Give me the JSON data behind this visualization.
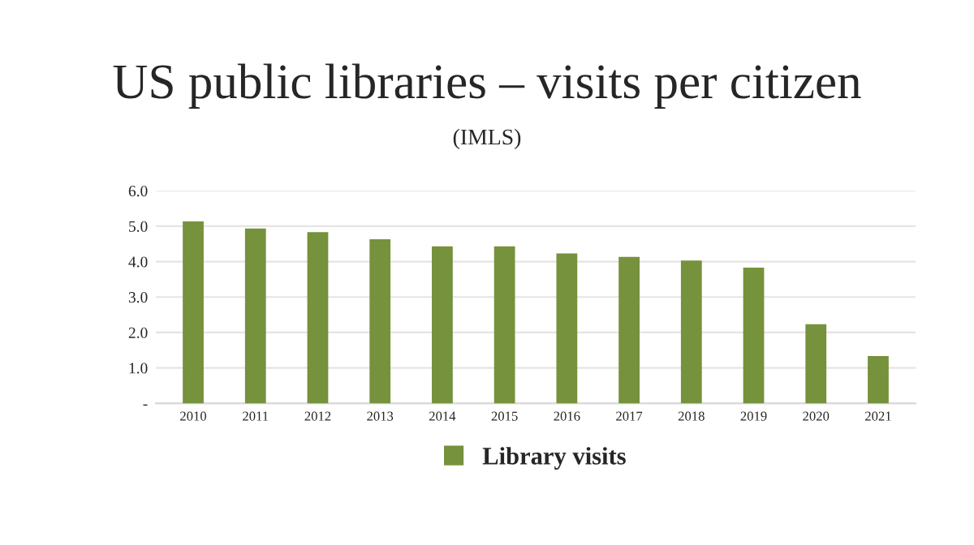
{
  "chart_data": {
    "type": "bar",
    "title": "US public libraries – visits per citizen",
    "subtitle": "(IMLS)",
    "categories": [
      "2010",
      "2011",
      "2012",
      "2013",
      "2014",
      "2015",
      "2016",
      "2017",
      "2018",
      "2019",
      "2020",
      "2021"
    ],
    "series": [
      {
        "name": "Library visits",
        "color": "#76923c",
        "values": [
          5.1,
          4.9,
          4.8,
          4.6,
          4.4,
          4.4,
          4.2,
          4.1,
          4.0,
          3.8,
          2.2,
          1.3
        ]
      }
    ],
    "ylim": [
      0,
      6
    ],
    "yticks": [
      {
        "value": 0,
        "label": "-"
      },
      {
        "value": 1,
        "label": "1.0"
      },
      {
        "value": 2,
        "label": "2.0"
      },
      {
        "value": 3,
        "label": "3.0"
      },
      {
        "value": 4,
        "label": "4.0"
      },
      {
        "value": 5,
        "label": "5.0"
      },
      {
        "value": 6,
        "label": "6.0"
      }
    ],
    "grid": "y",
    "legend": "bottom"
  }
}
